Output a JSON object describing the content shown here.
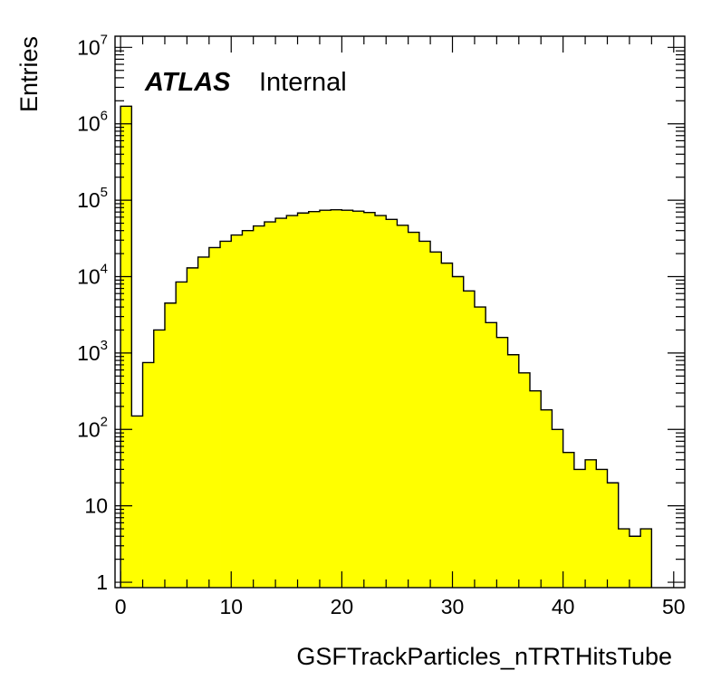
{
  "chart_data": {
    "type": "bar",
    "style": "histogram",
    "fill_color": "#ffff00",
    "line_color": "#000000",
    "bin_width": 1,
    "x_start": 0,
    "xlabel": "GSFTrackParticles_nTRTHitsTube",
    "ylabel": "Entries",
    "xlim": [
      -0.5,
      51
    ],
    "ylim": [
      0.85,
      14000000
    ],
    "y_scale": "log",
    "grid": false,
    "x_ticks": [
      {
        "value": 0,
        "label": "0"
      },
      {
        "value": 10,
        "label": "10"
      },
      {
        "value": 20,
        "label": "20"
      },
      {
        "value": 30,
        "label": "30"
      },
      {
        "value": 40,
        "label": "40"
      },
      {
        "value": 50,
        "label": "50"
      }
    ],
    "y_ticks": [
      {
        "value": 1,
        "base": "1",
        "exp": ""
      },
      {
        "value": 10,
        "base": "10",
        "exp": ""
      },
      {
        "value": 100,
        "base": "10",
        "exp": "2"
      },
      {
        "value": 1000,
        "base": "10",
        "exp": "3"
      },
      {
        "value": 10000,
        "base": "10",
        "exp": "4"
      },
      {
        "value": 100000,
        "base": "10",
        "exp": "5"
      },
      {
        "value": 1000000,
        "base": "10",
        "exp": "6"
      },
      {
        "value": 10000000,
        "base": "10",
        "exp": "7"
      }
    ],
    "values": [
      1700000,
      150,
      750,
      2000,
      4500,
      8500,
      13000,
      18000,
      24000,
      29000,
      35000,
      40000,
      46000,
      52000,
      58000,
      63000,
      68000,
      71000,
      74000,
      75000,
      74000,
      72000,
      69000,
      63000,
      56000,
      47000,
      38000,
      29000,
      21000,
      15000,
      10000,
      6500,
      4000,
      2500,
      1600,
      950,
      550,
      320,
      180,
      100,
      50,
      30,
      40,
      30,
      20,
      5,
      4,
      5
    ],
    "annotations": [
      {
        "name": "experiment",
        "text": "ATLAS"
      },
      {
        "name": "status",
        "text": "Internal"
      }
    ]
  }
}
